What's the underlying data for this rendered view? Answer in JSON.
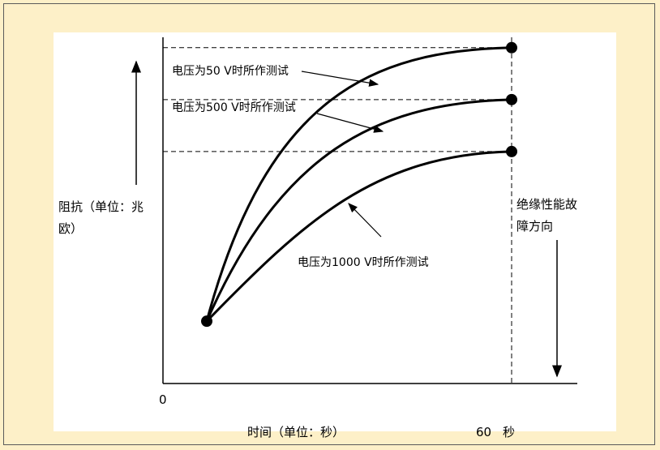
{
  "chart_data": {
    "type": "line",
    "x": [
      0,
      60
    ],
    "x_tick_labels": [
      "0",
      "60"
    ],
    "x_unit_suffix": "秒",
    "xlabel": "时间（单位：秒）",
    "ylabel": "阻抗（单位：兆欧）",
    "ylabel_lines": [
      "阻抗（单位：兆",
      "欧）"
    ],
    "direction_label_lines": [
      "绝缘性能故",
      "障方向"
    ],
    "grid": false,
    "series": [
      {
        "name": "电压为50 V时所作测试",
        "values": [
          0.18,
          0.97
        ]
      },
      {
        "name": "电压为500 V时所作测试",
        "values": [
          0.18,
          0.82
        ]
      },
      {
        "name": "电压为1000 V时所作测试",
        "values": [
          0.18,
          0.67
        ]
      }
    ]
  }
}
